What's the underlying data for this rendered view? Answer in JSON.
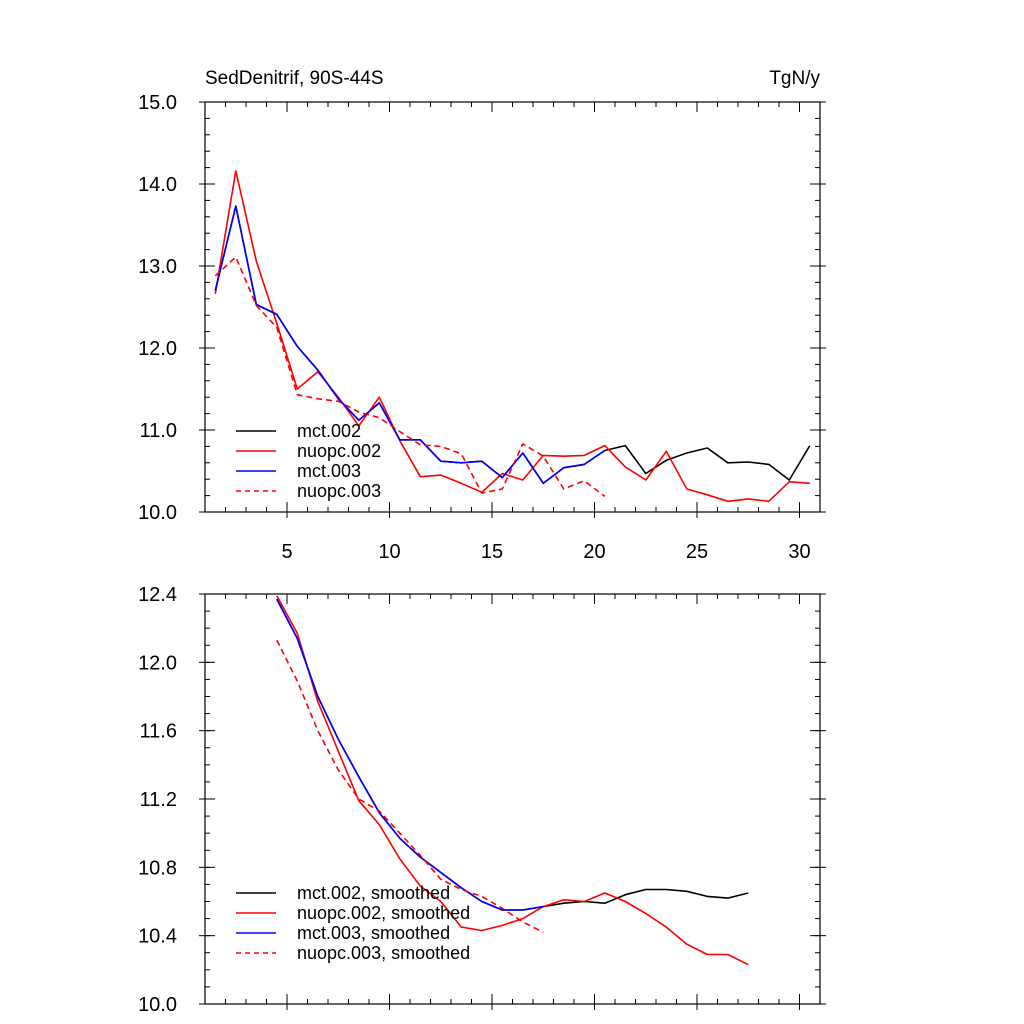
{
  "chart_data": [
    {
      "type": "line",
      "title": "SedDenitrif, 90S-44S",
      "units": "TgN/y",
      "xlabel": "",
      "ylabel": "",
      "xlim": [
        1,
        31
      ],
      "ylim": [
        10.0,
        15.0
      ],
      "xticks": [
        5,
        10,
        15,
        20,
        25,
        30
      ],
      "yticks": [
        "10.0",
        "11.0",
        "12.0",
        "13.0",
        "14.0",
        "15.0"
      ],
      "yminor_step": 0.2,
      "xminor_step": 1,
      "legend_position": "bottom-left",
      "series": [
        {
          "name": "mct.002",
          "color": "#000000",
          "dash": "solid",
          "x": [
            1.5,
            2.5,
            3.5,
            4.5,
            5.5,
            6.5,
            7.5,
            8.5,
            9.5,
            10.5,
            11.5,
            12.5,
            13.5,
            14.5,
            15.5,
            16.5,
            17.5,
            18.5,
            19.5,
            20.5,
            21.5,
            22.5,
            23.5,
            24.5,
            25.5,
            26.5,
            27.5,
            28.5,
            29.5,
            30.5
          ],
          "values": [
            12.7,
            13.73,
            12.53,
            12.41,
            12.02,
            11.73,
            11.38,
            11.12,
            11.33,
            10.88,
            10.88,
            10.62,
            10.6,
            10.62,
            10.42,
            10.72,
            10.35,
            10.54,
            10.58,
            10.75,
            10.81,
            10.47,
            10.63,
            10.72,
            10.78,
            10.6,
            10.61,
            10.58,
            10.39,
            10.81
          ]
        },
        {
          "name": "nuopc.002",
          "color": "#ff0000",
          "dash": "solid",
          "x": [
            1.5,
            2.5,
            3.5,
            4.5,
            5.5,
            6.5,
            7.5,
            8.5,
            9.5,
            10.5,
            11.5,
            12.5,
            13.5,
            14.5,
            15.5,
            16.5,
            17.5,
            18.5,
            19.5,
            20.5,
            21.5,
            22.5,
            23.5,
            24.5,
            25.5,
            26.5,
            27.5,
            28.5,
            29.5,
            30.5
          ],
          "values": [
            12.66,
            14.16,
            13.06,
            12.3,
            11.5,
            11.71,
            11.4,
            11.05,
            11.4,
            10.87,
            10.43,
            10.45,
            10.35,
            10.24,
            10.47,
            10.39,
            10.69,
            10.68,
            10.69,
            10.81,
            10.55,
            10.39,
            10.74,
            10.28,
            10.21,
            10.13,
            10.16,
            10.13,
            10.37,
            10.35
          ]
        },
        {
          "name": "mct.003",
          "color": "#0000ff",
          "dash": "solid",
          "x": [
            1.5,
            2.5,
            3.5,
            4.5,
            5.5,
            6.5,
            7.5,
            8.5,
            9.5,
            10.5,
            11.5,
            12.5,
            13.5,
            14.5,
            15.5,
            16.5,
            17.5,
            18.5,
            19.5,
            20.5
          ],
          "values": [
            12.7,
            13.73,
            12.53,
            12.41,
            12.02,
            11.73,
            11.38,
            11.12,
            11.33,
            10.88,
            10.88,
            10.62,
            10.6,
            10.62,
            10.42,
            10.72,
            10.35,
            10.54,
            10.58,
            10.75
          ]
        },
        {
          "name": "nuopc.003",
          "color": "#ff0000",
          "dash": "dashed",
          "x": [
            1.5,
            2.5,
            3.5,
            4.5,
            5.5,
            6.5,
            7.5,
            8.5,
            9.5,
            10.5,
            11.5,
            12.5,
            13.5,
            14.5,
            15.5,
            16.5,
            17.5,
            18.5,
            19.5,
            20.5
          ],
          "values": [
            12.88,
            13.11,
            12.52,
            12.25,
            11.43,
            11.38,
            11.35,
            11.22,
            11.15,
            10.98,
            10.82,
            10.8,
            10.71,
            10.23,
            10.28,
            10.83,
            10.68,
            10.28,
            10.38,
            10.19
          ]
        }
      ]
    },
    {
      "type": "line",
      "title": "",
      "xlabel": "",
      "ylabel": "",
      "xlim": [
        1,
        31
      ],
      "ylim": [
        10.0,
        12.4
      ],
      "xticks": [
        5,
        10,
        15,
        20,
        25,
        30
      ],
      "xticklabels": [],
      "yticks": [
        "10.0",
        "10.4",
        "10.8",
        "11.2",
        "11.6",
        "12.0",
        "12.4"
      ],
      "yminor_step": 0.1,
      "xminor_step": 1,
      "legend_position": "bottom-left",
      "series": [
        {
          "name": "mct.002, smoothed",
          "color": "#000000",
          "dash": "solid",
          "x": [
            4.5,
            5.5,
            6.5,
            7.5,
            8.5,
            9.5,
            10.5,
            11.5,
            12.5,
            13.5,
            14.5,
            15.5,
            16.5,
            17.5,
            18.5,
            19.5,
            20.5,
            21.5,
            22.5,
            23.5,
            24.5,
            25.5,
            26.5,
            27.5
          ],
          "values": [
            12.37,
            12.14,
            11.8,
            11.55,
            11.33,
            11.12,
            10.97,
            10.86,
            10.77,
            10.68,
            10.6,
            10.55,
            10.55,
            10.57,
            10.59,
            10.6,
            10.59,
            10.64,
            10.67,
            10.67,
            10.66,
            10.63,
            10.62,
            10.65
          ]
        },
        {
          "name": "nuopc.002, smoothed",
          "color": "#ff0000",
          "dash": "solid",
          "x": [
            4.5,
            5.5,
            6.5,
            7.5,
            8.5,
            9.5,
            10.5,
            11.5,
            12.5,
            13.5,
            14.5,
            15.5,
            16.5,
            17.5,
            18.5,
            19.5,
            20.5,
            21.5,
            22.5,
            23.5,
            24.5,
            25.5,
            26.5,
            27.5
          ],
          "values": [
            12.39,
            12.17,
            11.77,
            11.48,
            11.19,
            11.05,
            10.85,
            10.69,
            10.6,
            10.45,
            10.43,
            10.46,
            10.5,
            10.57,
            10.61,
            10.6,
            10.65,
            10.6,
            10.53,
            10.45,
            10.35,
            10.29,
            10.29,
            10.23
          ]
        },
        {
          "name": "mct.003, smoothed",
          "color": "#0000ff",
          "dash": "solid",
          "x": [
            4.5,
            5.5,
            6.5,
            7.5,
            8.5,
            9.5,
            10.5,
            11.5,
            12.5,
            13.5,
            14.5,
            15.5,
            16.5,
            17.5
          ],
          "values": [
            12.37,
            12.14,
            11.8,
            11.55,
            11.33,
            11.12,
            10.97,
            10.86,
            10.77,
            10.68,
            10.6,
            10.55,
            10.55,
            10.57
          ]
        },
        {
          "name": "nuopc.003, smoothed",
          "color": "#ff0000",
          "dash": "dashed",
          "x": [
            4.5,
            5.5,
            6.5,
            7.5,
            8.5,
            9.5,
            10.5,
            11.5,
            12.5,
            13.5,
            14.5,
            15.5,
            16.5,
            17.5
          ],
          "values": [
            12.13,
            11.89,
            11.6,
            11.37,
            11.2,
            11.13,
            11.0,
            10.87,
            10.73,
            10.67,
            10.63,
            10.56,
            10.48,
            10.42
          ]
        }
      ]
    }
  ]
}
